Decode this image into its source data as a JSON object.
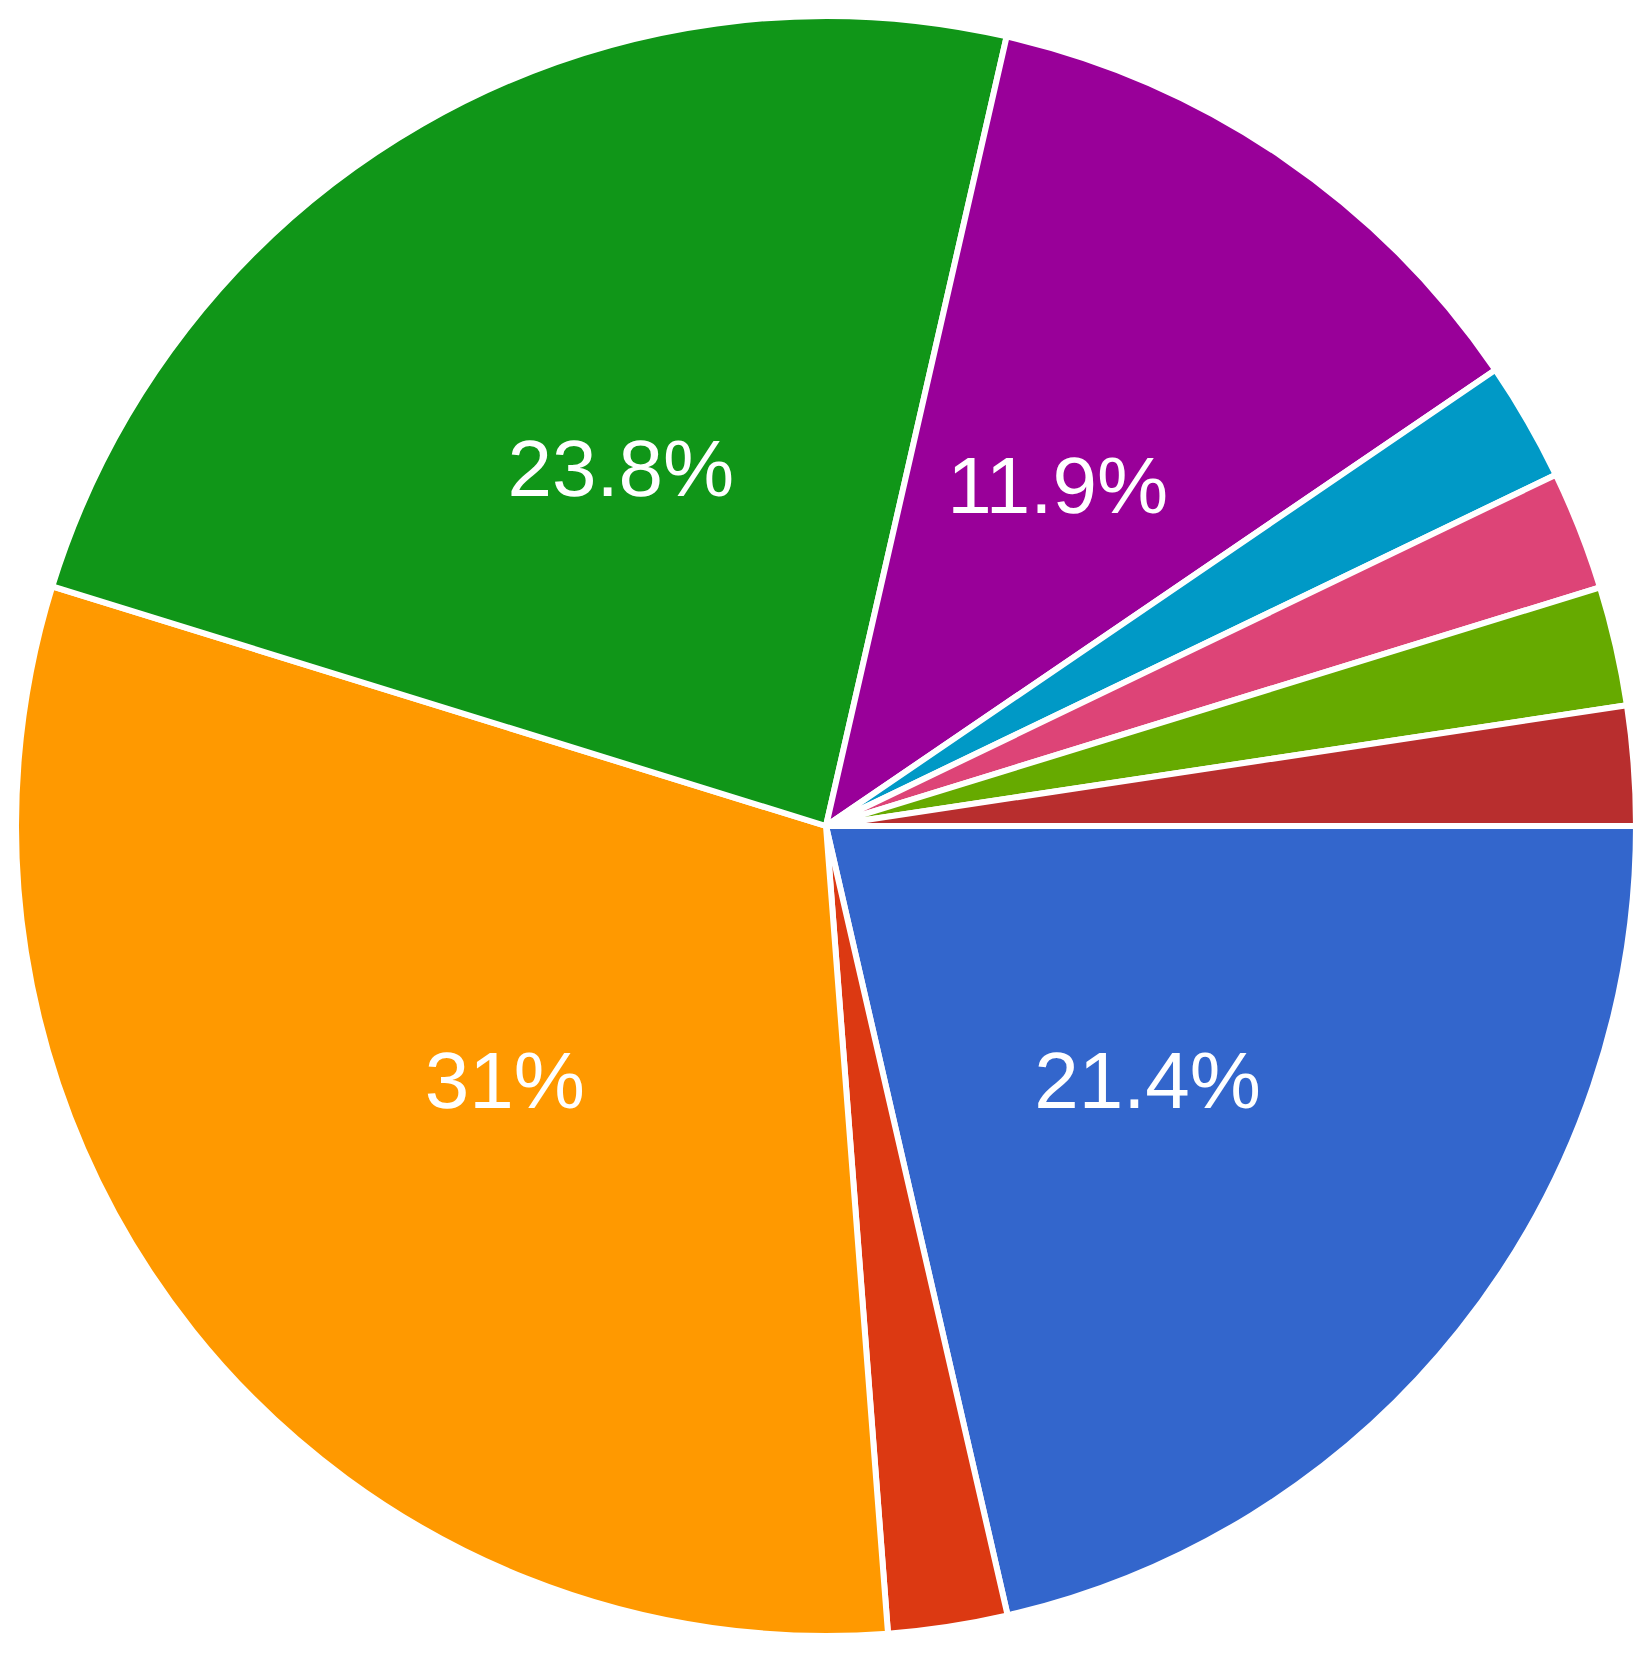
{
  "chart_data": {
    "type": "pie",
    "categories": [
      null,
      null,
      null,
      null,
      null,
      null,
      null,
      null,
      null
    ],
    "values": [
      21.4,
      2.38,
      31,
      23.8,
      11.9,
      2.38,
      2.38,
      2.38,
      2.38
    ],
    "value_labels": [
      "21.4%",
      null,
      "31%",
      "23.8%",
      "11.9%",
      null,
      null,
      null,
      null
    ],
    "colors": [
      "#3366cc",
      "#dc3912",
      "#ff9900",
      "#109618",
      "#990099",
      "#0099c6",
      "#dd4477",
      "#66aa00",
      "#b82e2e"
    ]
  }
}
